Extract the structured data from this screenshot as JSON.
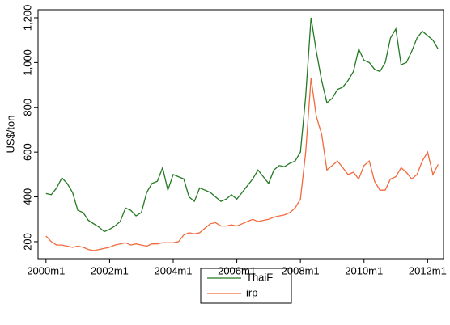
{
  "chart_data": {
    "type": "line",
    "y_label": "US$/ton",
    "x": [
      2000,
      2000.167,
      2000.333,
      2000.5,
      2000.667,
      2000.833,
      2001,
      2001.167,
      2001.333,
      2001.5,
      2001.667,
      2001.833,
      2002,
      2002.167,
      2002.333,
      2002.5,
      2002.667,
      2002.833,
      2003,
      2003.167,
      2003.333,
      2003.5,
      2003.667,
      2003.833,
      2004,
      2004.167,
      2004.333,
      2004.5,
      2004.667,
      2004.833,
      2005,
      2005.167,
      2005.333,
      2005.5,
      2005.667,
      2005.833,
      2006,
      2006.167,
      2006.333,
      2006.5,
      2006.667,
      2006.833,
      2007,
      2007.167,
      2007.333,
      2007.5,
      2007.667,
      2007.833,
      2008,
      2008.167,
      2008.333,
      2008.5,
      2008.667,
      2008.833,
      2009,
      2009.167,
      2009.333,
      2009.5,
      2009.667,
      2009.833,
      2010,
      2010.167,
      2010.333,
      2010.5,
      2010.667,
      2010.833,
      2011,
      2011.167,
      2011.333,
      2011.5,
      2011.667,
      2011.833,
      2012,
      2012.167,
      2012.333
    ],
    "series": [
      {
        "name": "ThaiF",
        "color": "#237a23",
        "values": [
          415,
          410,
          440,
          485,
          460,
          420,
          340,
          330,
          295,
          280,
          265,
          245,
          255,
          270,
          290,
          350,
          340,
          315,
          330,
          420,
          460,
          470,
          530,
          430,
          500,
          490,
          480,
          400,
          380,
          440,
          430,
          420,
          400,
          380,
          390,
          410,
          390,
          420,
          450,
          480,
          520,
          490,
          460,
          520,
          540,
          535,
          550,
          560,
          600,
          850,
          1200,
          1050,
          920,
          820,
          840,
          880,
          890,
          920,
          960,
          1060,
          1010,
          1000,
          970,
          960,
          1000,
          1110,
          1150,
          990,
          1000,
          1050,
          1110,
          1140,
          1120,
          1100,
          1060
        ]
      },
      {
        "name": "irp",
        "color": "#f26a3c",
        "values": [
          225,
          200,
          185,
          185,
          180,
          175,
          180,
          175,
          165,
          160,
          165,
          170,
          175,
          185,
          190,
          195,
          185,
          190,
          185,
          180,
          190,
          190,
          195,
          195,
          195,
          200,
          230,
          240,
          235,
          240,
          260,
          280,
          285,
          270,
          270,
          275,
          270,
          280,
          290,
          300,
          290,
          295,
          300,
          310,
          315,
          320,
          330,
          350,
          390,
          600,
          930,
          760,
          680,
          520,
          540,
          560,
          530,
          500,
          510,
          480,
          540,
          560,
          470,
          430,
          430,
          480,
          490,
          530,
          510,
          480,
          500,
          560,
          600,
          500,
          545
        ]
      }
    ],
    "xlim": [
      1999.75,
      2012.5
    ],
    "xticks": [
      {
        "value": 2000,
        "label": "2000m1"
      },
      {
        "value": 2002,
        "label": "2002m1"
      },
      {
        "value": 2004,
        "label": "2004m1"
      },
      {
        "value": 2006,
        "label": "2006m1"
      },
      {
        "value": 2008,
        "label": "2008m1"
      },
      {
        "value": 2010,
        "label": "2010m1"
      },
      {
        "value": 2012,
        "label": "2012m1"
      }
    ],
    "ylim": [
      124,
      1236
    ],
    "yticks": [
      200,
      400,
      600,
      800,
      {
        "value": 1000,
        "label": "1,000"
      },
      {
        "value": 1200,
        "label": "1,200"
      }
    ]
  }
}
